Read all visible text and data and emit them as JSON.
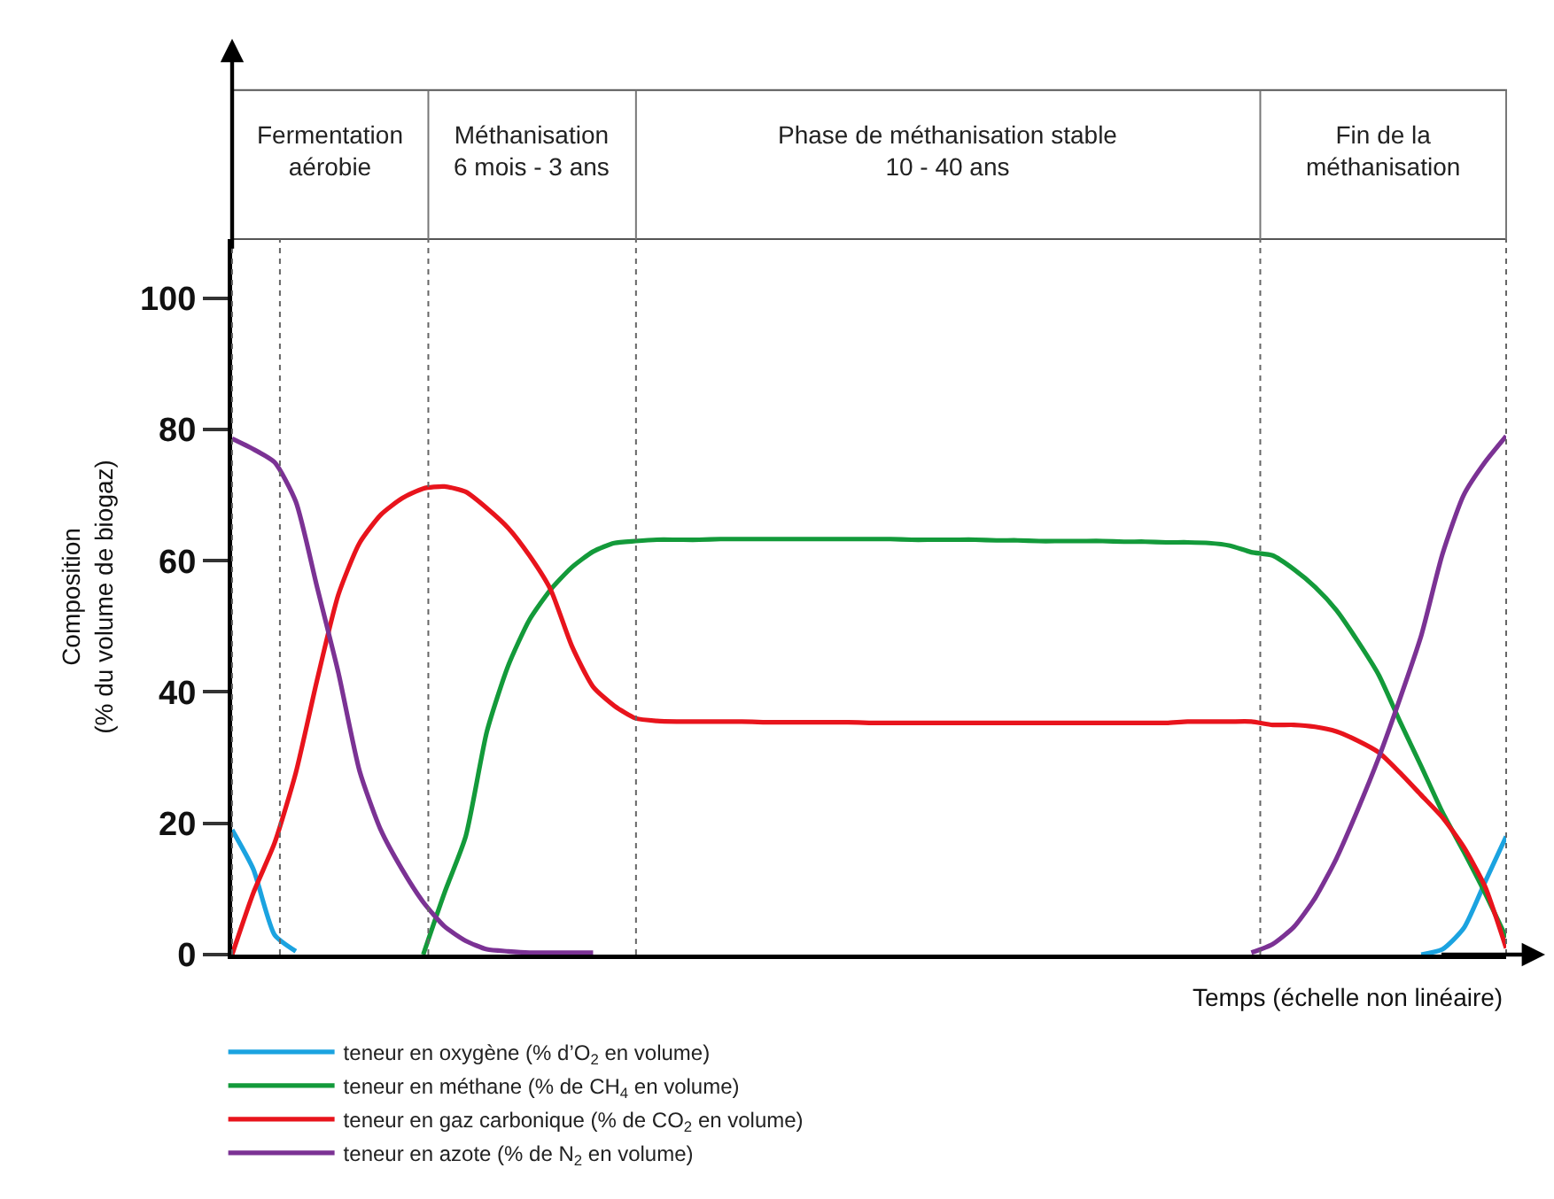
{
  "chart_data": {
    "type": "line",
    "xlabel": "Temps (échelle non linéaire)",
    "ylabel": "Composition\n(% du volume de biogaz)",
    "categories": [
      null,
      null,
      null,
      null,
      null,
      null,
      null,
      null,
      null,
      null,
      null,
      null,
      null,
      null,
      null,
      null,
      null,
      null,
      null,
      null,
      null,
      null,
      null,
      null,
      null,
      null,
      null,
      null,
      null,
      null,
      null,
      null,
      null,
      null,
      null,
      null,
      null,
      null,
      null,
      null,
      null,
      null,
      null,
      null,
      null,
      null,
      null,
      null,
      null,
      null,
      null,
      null,
      null,
      null,
      null,
      null,
      null,
      null,
      null,
      null,
      null
    ],
    "ylim": [
      0,
      109
    ],
    "yticks": [
      0,
      20,
      40,
      60,
      80,
      100
    ],
    "grid": false,
    "legend": "bottom left",
    "tick_labels": "y",
    "marker": "none",
    "line_style": "solid",
    "series": [
      {
        "name": "teneur en oxygène (% d’O$_{2}$ en volume)",
        "color": "#1ba3e0",
        "values": [
          19,
          13,
          3,
          0.5,
          null,
          null,
          null,
          null,
          null,
          null,
          null,
          null,
          null,
          null,
          null,
          null,
          null,
          null,
          null,
          null,
          null,
          null,
          null,
          null,
          null,
          null,
          null,
          null,
          null,
          null,
          null,
          null,
          null,
          null,
          null,
          null,
          null,
          null,
          null,
          null,
          null,
          null,
          null,
          null,
          null,
          null,
          null,
          null,
          null,
          null,
          null,
          null,
          null,
          null,
          null,
          null,
          0,
          0.8,
          4,
          11,
          18
        ]
      },
      {
        "name": "teneur en méthane (% de CH$_{4}$ en volume)",
        "color": "#139a3a",
        "values": [
          null,
          null,
          null,
          null,
          null,
          null,
          null,
          null,
          null,
          0,
          9.4,
          18,
          34,
          44,
          51,
          55.6,
          59,
          61.4,
          62.7,
          63,
          63.2,
          63.2,
          63.2,
          63.3,
          63.3,
          63.3,
          63.3,
          63.3,
          63.3,
          63.3,
          63.3,
          63.3,
          63.2,
          63.2,
          63.2,
          63.2,
          63.1,
          63.1,
          63,
          63,
          63,
          63,
          62.9,
          62.9,
          62.8,
          62.8,
          62.7,
          62.3,
          61.3,
          60.8,
          58.7,
          56,
          52.5,
          47.8,
          42.6,
          35.5,
          28.7,
          21.7,
          15.7,
          9.4,
          2.6
        ]
      },
      {
        "name": "teneur en gaz carbonique (% de CO$_{2}$ en volume)",
        "color": "#e8141c",
        "values": [
          0,
          9.4,
          17,
          27.7,
          41.8,
          54.8,
          62.7,
          67,
          69.5,
          71,
          71.3,
          70.5,
          68,
          65,
          60.8,
          55.6,
          47,
          40.8,
          37.9,
          36,
          35.6,
          35.5,
          35.5,
          35.5,
          35.5,
          35.4,
          35.4,
          35.4,
          35.4,
          35.4,
          35.3,
          35.3,
          35.3,
          35.3,
          35.3,
          35.3,
          35.3,
          35.3,
          35.3,
          35.3,
          35.3,
          35.3,
          35.3,
          35.3,
          35.3,
          35.5,
          35.5,
          35.5,
          35.5,
          35,
          35,
          34.7,
          34,
          32.6,
          30.8,
          27.7,
          24.3,
          20.9,
          16.4,
          10.4,
          1
        ]
      },
      {
        "name": "teneur en azote (% de N$_{2}$ en volume)",
        "color": "#7b3294",
        "values": [
          78.6,
          77,
          75,
          69,
          56,
          43,
          28,
          19,
          13,
          8,
          4.3,
          2.1,
          0.8,
          0.5,
          0.3,
          0.3,
          0.3,
          0.3,
          null,
          null,
          null,
          null,
          null,
          null,
          null,
          null,
          null,
          null,
          null,
          null,
          null,
          null,
          null,
          null,
          null,
          null,
          null,
          null,
          null,
          null,
          null,
          null,
          null,
          null,
          null,
          null,
          null,
          null,
          0.3,
          1.6,
          4.2,
          8.6,
          14.6,
          22,
          30,
          39,
          48.6,
          61,
          70,
          75,
          79
        ]
      }
    ],
    "annotations": [
      "Fermentation\naérobie",
      "Méthanisation\n6 mois - 3 ans",
      "Phase de méthanisation stable\n10 - 40 ans",
      "Fin de la\nméthanisation"
    ]
  }
}
